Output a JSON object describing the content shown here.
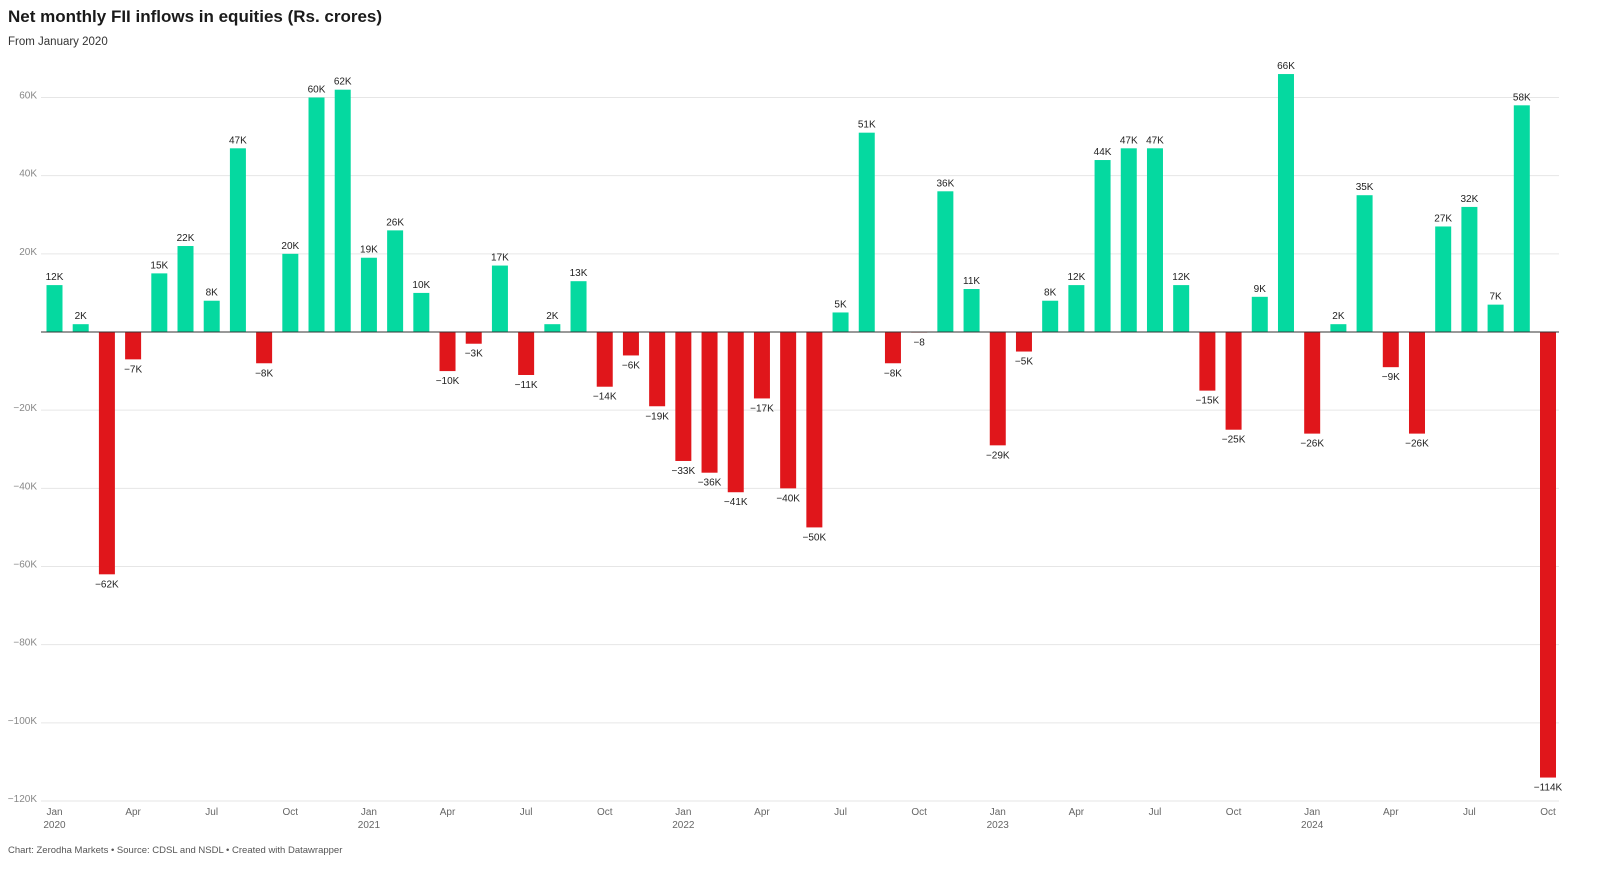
{
  "title": "Net monthly FII inflows in equities (Rs. crores)",
  "subtitle": "From January 2020",
  "footer": "Chart: Zerodha Markets • Source: CDSL and NSDL • Created with Datawrapper",
  "colors": {
    "positive": "#05d9a0",
    "negative": "#e0161b",
    "grid": "#e6e6e6"
  },
  "chart_data": {
    "type": "bar",
    "title": "Net monthly FII inflows in equities (Rs. crores)",
    "subtitle": "From January 2020",
    "ylim": [
      -120000,
      70000
    ],
    "yticks": [
      60000,
      40000,
      20000,
      0,
      -20000,
      -40000,
      -60000,
      -80000,
      -100000,
      -120000
    ],
    "ytick_labels": [
      "60K",
      "40K",
      "20K",
      "",
      "−20K",
      "−40K",
      "−60K",
      "−80K",
      "−100K",
      "−120K"
    ],
    "grid": true,
    "categories": [
      "Jan 2020",
      "Feb 2020",
      "Mar 2020",
      "Apr 2020",
      "May 2020",
      "Jun 2020",
      "Jul 2020",
      "Aug 2020",
      "Sep 2020",
      "Oct 2020",
      "Nov 2020",
      "Dec 2020",
      "Jan 2021",
      "Feb 2021",
      "Mar 2021",
      "Apr 2021",
      "May 2021",
      "Jun 2021",
      "Jul 2021",
      "Aug 2021",
      "Sep 2021",
      "Oct 2021",
      "Nov 2021",
      "Dec 2021",
      "Jan 2022",
      "Feb 2022",
      "Mar 2022",
      "Apr 2022",
      "May 2022",
      "Jun 2022",
      "Jul 2022",
      "Aug 2022",
      "Sep 2022",
      "Oct 2022",
      "Nov 2022",
      "Dec 2022",
      "Jan 2023",
      "Feb 2023",
      "Mar 2023",
      "Apr 2023",
      "May 2023",
      "Jun 2023",
      "Jul 2023",
      "Aug 2023",
      "Sep 2023",
      "Oct 2023",
      "Nov 2023",
      "Dec 2023",
      "Jan 2024",
      "Feb 2024",
      "Mar 2024",
      "Apr 2024",
      "May 2024",
      "Jun 2024",
      "Jul 2024",
      "Aug 2024",
      "Sep 2024",
      "Oct 2024"
    ],
    "values": [
      12000,
      2000,
      -62000,
      -7000,
      15000,
      22000,
      8000,
      47000,
      -8000,
      20000,
      60000,
      62000,
      19000,
      26000,
      10000,
      -10000,
      -3000,
      17000,
      -11000,
      2000,
      13000,
      -14000,
      -6000,
      -19000,
      -33000,
      -36000,
      -41000,
      -17000,
      -40000,
      -50000,
      5000,
      51000,
      -8000,
      -8,
      36000,
      11000,
      -29000,
      -5000,
      8000,
      12000,
      44000,
      47000,
      47000,
      12000,
      -15000,
      -25000,
      9000,
      66000,
      -26000,
      2000,
      35000,
      -9000,
      -26000,
      27000,
      32000,
      7000,
      58000,
      -114000
    ],
    "data_labels": [
      "12K",
      "2K",
      "−62K",
      "−7K",
      "15K",
      "22K",
      "8K",
      "47K",
      "−8K",
      "20K",
      "60K",
      "62K",
      "19K",
      "26K",
      "10K",
      "−10K",
      "−3K",
      "17K",
      "−11K",
      "2K",
      "13K",
      "−14K",
      "−6K",
      "−19K",
      "−33K",
      "−36K",
      "−41K",
      "−17K",
      "−40K",
      "−50K",
      "5K",
      "51K",
      "−8K",
      "−8",
      "36K",
      "11K",
      "−29K",
      "−5K",
      "8K",
      "12K",
      "44K",
      "47K",
      "47K",
      "12K",
      "−15K",
      "−25K",
      "9K",
      "66K",
      "−26K",
      "2K",
      "35K",
      "−9K",
      "−26K",
      "27K",
      "32K",
      "7K",
      "58K",
      "−114K"
    ],
    "xtick_labels": [
      {
        "index": 0,
        "line1": "Jan",
        "line2": "2020"
      },
      {
        "index": 3,
        "line1": "Apr",
        "line2": ""
      },
      {
        "index": 6,
        "line1": "Jul",
        "line2": ""
      },
      {
        "index": 9,
        "line1": "Oct",
        "line2": ""
      },
      {
        "index": 12,
        "line1": "Jan",
        "line2": "2021"
      },
      {
        "index": 15,
        "line1": "Apr",
        "line2": ""
      },
      {
        "index": 18,
        "line1": "Jul",
        "line2": ""
      },
      {
        "index": 21,
        "line1": "Oct",
        "line2": ""
      },
      {
        "index": 24,
        "line1": "Jan",
        "line2": "2022"
      },
      {
        "index": 27,
        "line1": "Apr",
        "line2": ""
      },
      {
        "index": 30,
        "line1": "Jul",
        "line2": ""
      },
      {
        "index": 33,
        "line1": "Oct",
        "line2": ""
      },
      {
        "index": 36,
        "line1": "Jan",
        "line2": "2023"
      },
      {
        "index": 39,
        "line1": "Apr",
        "line2": ""
      },
      {
        "index": 42,
        "line1": "Jul",
        "line2": ""
      },
      {
        "index": 45,
        "line1": "Oct",
        "line2": ""
      },
      {
        "index": 48,
        "line1": "Jan",
        "line2": "2024"
      },
      {
        "index": 51,
        "line1": "Apr",
        "line2": ""
      },
      {
        "index": 54,
        "line1": "Jul",
        "line2": ""
      },
      {
        "index": 57,
        "line1": "Oct",
        "line2": ""
      }
    ]
  }
}
